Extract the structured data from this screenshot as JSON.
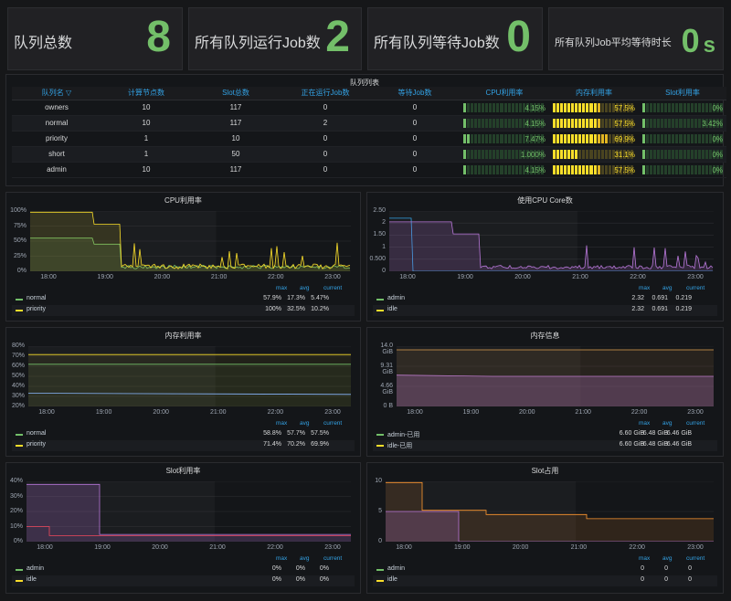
{
  "stats": [
    {
      "label": "队列总数",
      "value": "8",
      "unit": ""
    },
    {
      "label": "所有队列运行Job数",
      "value": "2",
      "unit": ""
    },
    {
      "label": "所有队列等待Job数",
      "value": "0",
      "unit": ""
    },
    {
      "label": "所有队列Job平均等待时长",
      "value": "0",
      "unit": "s"
    }
  ],
  "queue_table": {
    "title": "队列列表",
    "headers": [
      "队列名",
      "计算节点数",
      "Slot总数",
      "正在运行Job数",
      "等待Job数",
      "CPU利用率",
      "内存利用率",
      "Slot利用率"
    ],
    "sort_icon": "filter-icon",
    "rows": [
      {
        "name": "owners",
        "nodes": "10",
        "slots": "117",
        "running": "0",
        "waiting": "0",
        "cpu": "4.15%",
        "cpu_level": 0.0415,
        "mem": "57.5%",
        "mem_level": 0.575,
        "slot": "0%",
        "slot_level": 0
      },
      {
        "name": "normal",
        "nodes": "10",
        "slots": "117",
        "running": "2",
        "waiting": "0",
        "cpu": "4.15%",
        "cpu_level": 0.0415,
        "mem": "57.5%",
        "mem_level": 0.575,
        "slot": "3.42%",
        "slot_level": 0.0342
      },
      {
        "name": "priority",
        "nodes": "1",
        "slots": "10",
        "running": "0",
        "waiting": "0",
        "cpu": "7.47%",
        "cpu_level": 0.0747,
        "mem": "69.9%",
        "mem_level": 0.699,
        "slot": "0%",
        "slot_level": 0
      },
      {
        "name": "short",
        "nodes": "1",
        "slots": "50",
        "running": "0",
        "waiting": "0",
        "cpu": "1.000%",
        "cpu_level": 0.01,
        "mem": "31.1%",
        "mem_level": 0.311,
        "slot": "0%",
        "slot_level": 0
      },
      {
        "name": "admin",
        "nodes": "10",
        "slots": "117",
        "running": "0",
        "waiting": "0",
        "cpu": "4.15%",
        "cpu_level": 0.0415,
        "mem": "57.5%",
        "mem_level": 0.575,
        "slot": "0%",
        "slot_level": 0
      }
    ]
  },
  "colors": {
    "green": "#73bf69",
    "yellow": "#fade2a",
    "purple": "#b877d9",
    "red": "#f2495c",
    "orange": "#ff9830",
    "blue": "#33a2e5"
  },
  "legend_headers": {
    "max": "max",
    "avg": "avg",
    "current": "current"
  },
  "panels": {
    "cpu": {
      "title": "CPU利用率",
      "yticks": [
        "100%",
        "75%",
        "50%",
        "25%",
        "0%"
      ],
      "xticks": [
        "18:00",
        "19:00",
        "20:00",
        "21:00",
        "22:00",
        "23:00"
      ],
      "legend": [
        {
          "name": "normal",
          "max": "57.9%",
          "avg": "17.3%",
          "current": "5.47%",
          "color": "#73bf69"
        },
        {
          "name": "priority",
          "max": "100%",
          "avg": "32.5%",
          "current": "10.2%",
          "color": "#fade2a"
        }
      ]
    },
    "cores": {
      "title": "使用CPU Core数",
      "yticks": [
        "2.50",
        "2",
        "1.50",
        "1",
        "0.500",
        "0"
      ],
      "xticks": [
        "18:00",
        "19:00",
        "20:00",
        "21:00",
        "22:00",
        "23:00"
      ],
      "legend": [
        {
          "name": "admin",
          "max": "2.32",
          "avg": "0.691",
          "current": "0.219",
          "color": "#73bf69"
        },
        {
          "name": "idle",
          "max": "2.32",
          "avg": "0.691",
          "current": "0.219",
          "color": "#fade2a"
        }
      ]
    },
    "mem": {
      "title": "内存利用率",
      "yticks": [
        "80%",
        "70%",
        "60%",
        "50%",
        "40%",
        "30%",
        "20%"
      ],
      "xticks": [
        "18:00",
        "19:00",
        "20:00",
        "21:00",
        "22:00",
        "23:00"
      ],
      "legend": [
        {
          "name": "normal",
          "max": "58.8%",
          "avg": "57.7%",
          "current": "57.5%",
          "color": "#73bf69"
        },
        {
          "name": "priority",
          "max": "71.4%",
          "avg": "70.2%",
          "current": "69.9%",
          "color": "#fade2a"
        }
      ]
    },
    "meminfo": {
      "title": "内存信息",
      "yticks": [
        "14.0 GiB",
        "9.31 GiB",
        "4.66 GiB",
        "0 B"
      ],
      "xticks": [
        "18:00",
        "19:00",
        "20:00",
        "21:00",
        "22:00",
        "23:00"
      ],
      "legend": [
        {
          "name": "admin-已用",
          "max": "6.60 GiB",
          "avg": "6.48 GiB",
          "current": "6.46 GiB",
          "color": "#73bf69"
        },
        {
          "name": "idle-已用",
          "max": "6.60 GiB",
          "avg": "6.48 GiB",
          "current": "6.46 GiB",
          "color": "#fade2a"
        }
      ]
    },
    "slotutil": {
      "title": "Slot利用率",
      "yticks": [
        "40%",
        "30%",
        "20%",
        "10%",
        "0%"
      ],
      "xticks": [
        "18:00",
        "19:00",
        "20:00",
        "21:00",
        "22:00",
        "23:00"
      ],
      "legend": [
        {
          "name": "admin",
          "max": "0%",
          "avg": "0%",
          "current": "0%",
          "color": "#73bf69"
        },
        {
          "name": "idle",
          "max": "0%",
          "avg": "0%",
          "current": "0%",
          "color": "#fade2a"
        }
      ]
    },
    "slotused": {
      "title": "Slot占用",
      "yticks": [
        "10",
        "5",
        "0"
      ],
      "xticks": [
        "18:00",
        "19:00",
        "20:00",
        "21:00",
        "22:00",
        "23:00"
      ],
      "legend": [
        {
          "name": "admin",
          "max": "0",
          "avg": "0",
          "current": "0",
          "color": "#73bf69"
        },
        {
          "name": "idle",
          "max": "0",
          "avg": "0",
          "current": "0",
          "color": "#fade2a"
        }
      ]
    }
  }
}
